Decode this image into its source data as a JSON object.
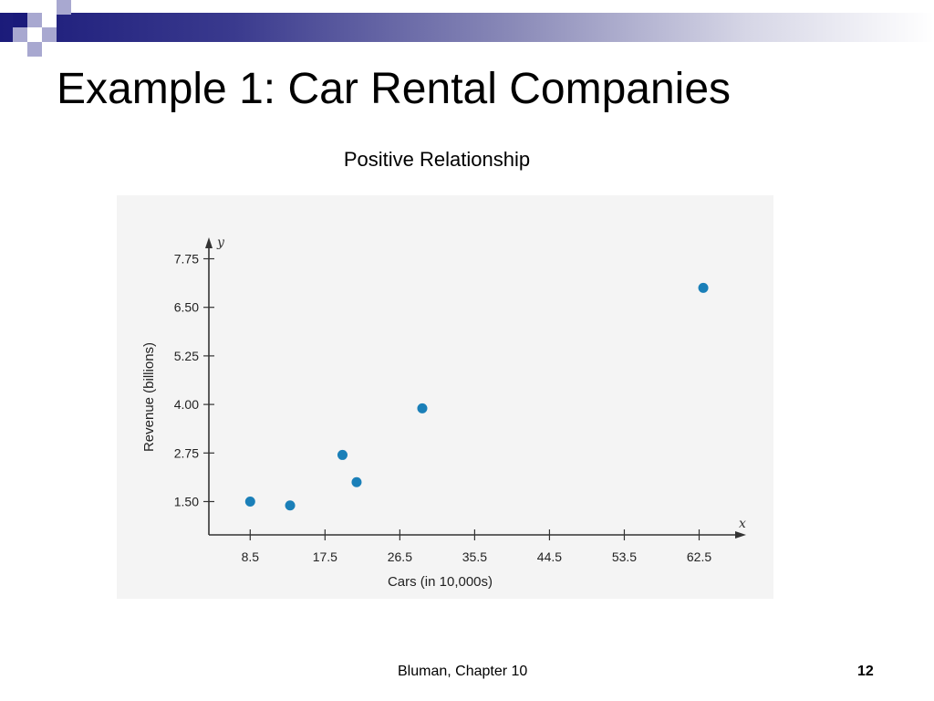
{
  "slide": {
    "title": "Example 1: Car Rental Companies",
    "subtitle": "Positive Relationship",
    "footer": "Bluman, Chapter 10",
    "page_number": "12"
  },
  "colors": {
    "point": "#1a7fb8",
    "axis": "#333333",
    "panel_bg": "#f4f4f4",
    "bar_dark": "#1b1b7a",
    "deco_light": "#a8a8d0"
  },
  "chart_data": {
    "type": "scatter",
    "title": "Positive Relationship",
    "xlabel": "Cars (in 10,000s)",
    "ylabel": "Revenue (billions)",
    "x_axis_symbol": "x",
    "y_axis_symbol": "y",
    "xlim": [
      4,
      67
    ],
    "ylim": [
      0.6,
      8.2
    ],
    "x_ticks": [
      8.5,
      17.5,
      26.5,
      35.5,
      44.5,
      53.5,
      62.5
    ],
    "x_tick_labels": [
      "8.5",
      "17.5",
      "26.5",
      "35.5",
      "44.5",
      "53.5",
      "62.5"
    ],
    "y_ticks": [
      1.5,
      2.75,
      4.0,
      5.25,
      6.5,
      7.75
    ],
    "y_tick_labels": [
      "1.50",
      "2.75",
      "4.00",
      "5.25",
      "6.50",
      "7.75"
    ],
    "grid": false,
    "series": [
      {
        "points": [
          {
            "x": 8.5,
            "y": 1.5
          },
          {
            "x": 13.3,
            "y": 1.4
          },
          {
            "x": 19.6,
            "y": 2.7
          },
          {
            "x": 21.3,
            "y": 2.0
          },
          {
            "x": 29.2,
            "y": 3.9
          },
          {
            "x": 63.0,
            "y": 7.0
          }
        ]
      }
    ]
  }
}
